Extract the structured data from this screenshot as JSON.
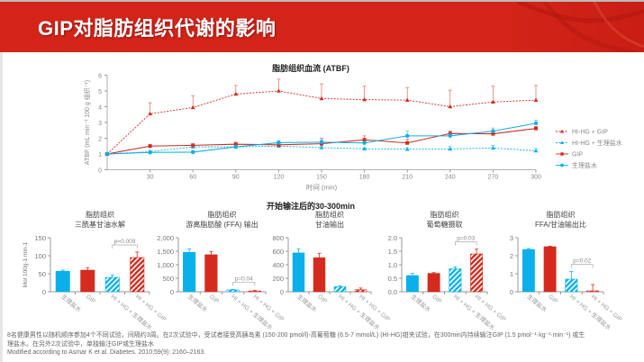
{
  "header": {
    "title": "GIP对脂肪组织代谢的影响"
  },
  "colors": {
    "red": "#d42b1e",
    "blue": "#0bb0ea",
    "light_red": "#e87a70",
    "light_blue": "#5fd0f5",
    "axis": "#999999",
    "text": "#555555"
  },
  "chart_data": [
    {
      "type": "line",
      "title": "脂肪组织血流 (ATBF)",
      "xlabel": "时间 (min)",
      "ylabel": "ATBF (mL min⁻¹ 100 g 组织⁻¹)",
      "x": [
        0,
        30,
        60,
        90,
        120,
        150,
        180,
        210,
        240,
        270,
        300
      ],
      "xticks": [
        30,
        60,
        90,
        120,
        150,
        180,
        210,
        240,
        270,
        300
      ],
      "ylim": [
        0,
        6
      ],
      "yticks": [
        0,
        1,
        2,
        3,
        4,
        5,
        6
      ],
      "legend": "right",
      "series": [
        {
          "name": "HI-HG + GIP",
          "color": "#d42b1e",
          "style": "dashed",
          "marker": "triangle",
          "values": [
            1,
            3.55,
            3.95,
            4.8,
            5.0,
            4.52,
            4.45,
            4.42,
            4.0,
            4.3,
            4.42
          ],
          "err_upper": [
            1,
            4.25,
            4.7,
            5.35,
            5.75,
            5.45,
            5.3,
            5.2,
            5.05,
            5.3,
            5.35
          ]
        },
        {
          "name": "HI-HG + 生理盐水",
          "color": "#0bb0ea",
          "style": "dashed",
          "marker": "triangle",
          "values": [
            1,
            1.15,
            1.45,
            1.45,
            1.5,
            1.4,
            1.33,
            1.3,
            1.32,
            1.38,
            1.2
          ],
          "err_upper": [
            1,
            1.2,
            1.5,
            1.55,
            1.58,
            1.5,
            1.4,
            1.4,
            1.5,
            1.55,
            1.35
          ]
        },
        {
          "name": "GIP",
          "color": "#d42b1e",
          "style": "solid",
          "marker": "square",
          "values": [
            1,
            1.5,
            1.55,
            1.62,
            1.58,
            1.65,
            1.9,
            1.7,
            2.3,
            2.28,
            2.62
          ],
          "err_upper": [
            1,
            1.6,
            1.65,
            1.75,
            1.65,
            2.0,
            2.15,
            1.95,
            2.45,
            2.4,
            2.75
          ]
        },
        {
          "name": "生理盐水",
          "color": "#0bb0ea",
          "style": "solid",
          "marker": "circle",
          "values": [
            1,
            1.1,
            1.12,
            1.45,
            1.72,
            1.75,
            1.7,
            2.15,
            2.15,
            2.45,
            2.95
          ],
          "err_upper": [
            1,
            1.15,
            1.2,
            1.55,
            1.85,
            1.9,
            1.8,
            2.45,
            2.3,
            2.65,
            3.15
          ]
        }
      ]
    },
    {
      "type": "bar",
      "title": "脂肪组织\n三酰基甘油水解",
      "ylabel": "Mol 100g-1 min-1",
      "categories": [
        "生理盐水",
        "GIP",
        "HI + HG + 生理盐水",
        "HI + HG + GIP"
      ],
      "values": [
        57,
        60,
        40,
        95
      ],
      "err_upper": [
        60,
        67,
        47,
        110
      ],
      "ylim": [
        0,
        150
      ],
      "yticks": [
        "0",
        "50",
        "100",
        "150"
      ],
      "ytick_values": [
        0,
        50,
        100,
        150
      ],
      "annotation": "p=0.009"
    },
    {
      "type": "bar",
      "title": "脂肪组织\n游离脂肪酸 (FFA) 输出",
      "categories": [
        "生理盐水",
        "GIP",
        "HI + HG + 生理盐水",
        "HI + HG + GIP"
      ],
      "values": [
        1460,
        1370,
        70,
        30
      ],
      "err_upper": [
        1580,
        1490,
        90,
        50
      ],
      "ylim": [
        0,
        2000
      ],
      "yticks": [
        "0",
        "500",
        "1,000",
        "1,500",
        "2,000"
      ],
      "ytick_values": [
        0,
        500,
        1000,
        1500,
        2000
      ],
      "annotation": "p=0.04"
    },
    {
      "type": "bar",
      "title": "脂肪组织\n甘油输出",
      "categories": [
        "生理盐水",
        "GIP",
        "HI + HG + 生理盐水",
        "HI + HG + GIP"
      ],
      "values": [
        575,
        505,
        75,
        30
      ],
      "err_upper": [
        635,
        570,
        90,
        55
      ],
      "ylim": [
        0,
        800
      ],
      "yticks": [
        "0",
        "200",
        "400",
        "600",
        "800"
      ],
      "ytick_values": [
        0,
        200,
        400,
        600,
        800
      ],
      "annotation": ""
    },
    {
      "type": "bar",
      "title": "脂肪组织\n葡萄糖摄取",
      "categories": [
        "生理盐水",
        "GIP",
        "HI + HG + 生理盐水",
        "HI + HG + GIP"
      ],
      "values": [
        0.6,
        0.68,
        0.85,
        1.4
      ],
      "err_upper": [
        0.68,
        0.71,
        0.92,
        1.58
      ],
      "ylim": [
        0,
        2
      ],
      "yticks": [
        "0.0",
        "0.5",
        "1.0",
        "1.5",
        "2.0"
      ],
      "ytick_values": [
        0,
        0.5,
        1,
        1.5,
        2
      ],
      "annotation": "p=0.03"
    },
    {
      "type": "bar",
      "title": "脂肪组织\nFFA/甘油输出比",
      "categories": [
        "生理盐水",
        "GIP",
        "HI + HG + 生理盐水",
        "HI + HG + GIP"
      ],
      "values": [
        2.35,
        2.5,
        0.7,
        0.05
      ],
      "err_upper": [
        2.4,
        2.53,
        1.12,
        0.4
      ],
      "ylim": [
        0,
        3
      ],
      "yticks": [
        "0",
        "1",
        "2",
        "3"
      ],
      "ytick_values": [
        0,
        1,
        2,
        3
      ],
      "annotation": "p=0.02"
    }
  ],
  "bar_section_title": "开始输注后的30-300min",
  "footnote": {
    "line1": "8名健康男性以随机顺序参加4个不同试验，间隔约3周。在2次试验中，受试者接受高胰岛素 (150-200 pmol/l)-高葡萄糖 (6.5-7 mmol/L) (HI-HG)钳夹试验，在300min内持续输注GIP (1.5 pmol⁻¹·kg⁻¹·min⁻¹) 或生",
    "line2": "理盐水。在另外2次试验中，单独输注GIP或生理盐水",
    "line3": "Modified according to Asmar K et al. Diabetes. 2010;59(9): 2160–2163."
  }
}
